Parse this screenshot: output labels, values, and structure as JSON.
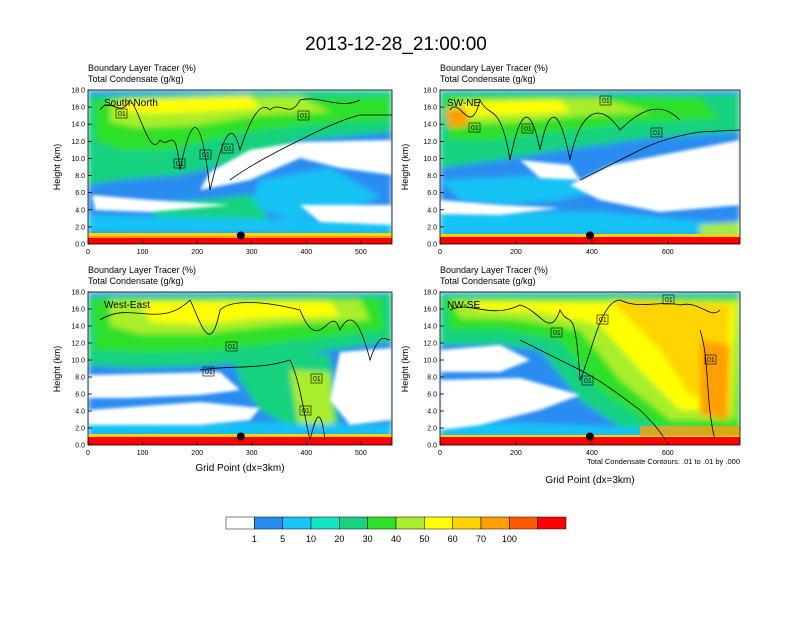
{
  "title": "2013-12-28_21:00:00",
  "panel_header_line1": "Boundary Layer Tracer   (%)",
  "panel_header_line2": "Total Condensate   (g/kg)",
  "ylabel": "Height (km)",
  "xlabel": "Grid Point (dx=3km)",
  "contour_note": "Total Condensate Contours: .01 to .01 by .000",
  "contour_label": "01",
  "colorbar": {
    "levels": [
      "1",
      "5",
      "10",
      "20",
      "30",
      "40",
      "50",
      "60",
      "70",
      "100"
    ],
    "colors": [
      "#ffffff",
      "#2b8cf0",
      "#18c3f5",
      "#12e6c0",
      "#19d27f",
      "#2fe02a",
      "#a8ee2a",
      "#ffff00",
      "#ffd400",
      "#ffa000",
      "#ff5a00",
      "#ff0000"
    ]
  },
  "chart_data": [
    {
      "type": "heatmap",
      "label": "South-North",
      "title_line1": "Boundary Layer Tracer (%)",
      "title_line2": "Total Condensate (g/kg)",
      "xlim": [
        0,
        557
      ],
      "ylim": [
        0,
        18
      ],
      "xticks": [
        0,
        100,
        200,
        300,
        400,
        500
      ],
      "yticks": [
        0.0,
        2.0,
        4.0,
        6.0,
        8.0,
        10.0,
        12.0,
        14.0,
        16.0,
        18.0
      ],
      "ylabel": "Height (km)",
      "marker_x": 280,
      "marker_y": 1.0,
      "contour_level": 0.01
    },
    {
      "type": "heatmap",
      "label": "SW-NE",
      "title_line1": "Boundary Layer Tracer (%)",
      "title_line2": "Total Condensate (g/kg)",
      "xlim": [
        0,
        790
      ],
      "ylim": [
        0,
        18
      ],
      "xticks": [
        0,
        200,
        400,
        600
      ],
      "yticks": [
        0.0,
        2.0,
        4.0,
        6.0,
        8.0,
        10.0,
        12.0,
        14.0,
        16.0,
        18.0
      ],
      "ylabel": "Height (km)",
      "marker_x": 395,
      "marker_y": 1.0,
      "contour_level": 0.01
    },
    {
      "type": "heatmap",
      "label": "West-East",
      "title_line1": "Boundary Layer Tracer (%)",
      "title_line2": "Total Condensate (g/kg)",
      "xlim": [
        0,
        557
      ],
      "ylim": [
        0,
        18
      ],
      "xticks": [
        0,
        100,
        200,
        300,
        400,
        500
      ],
      "yticks": [
        0.0,
        2.0,
        4.0,
        6.0,
        8.0,
        10.0,
        12.0,
        14.0,
        16.0,
        18.0
      ],
      "ylabel": "Height (km)",
      "xlabel": "Grid Point (dx=3km)",
      "marker_x": 280,
      "marker_y": 1.0,
      "contour_level": 0.01
    },
    {
      "type": "heatmap",
      "label": "NW-SE",
      "title_line1": "Boundary Layer Tracer (%)",
      "title_line2": "Total Condensate (g/kg)",
      "xlim": [
        0,
        790
      ],
      "ylim": [
        0,
        18
      ],
      "xticks": [
        0,
        200,
        400,
        600
      ],
      "yticks": [
        0.0,
        2.0,
        4.0,
        6.0,
        8.0,
        10.0,
        12.0,
        14.0,
        16.0,
        18.0
      ],
      "ylabel": "Height (km)",
      "xlabel": "Grid Point (dx=3km)",
      "marker_x": 395,
      "marker_y": 1.0,
      "contour_level": 0.01
    }
  ]
}
